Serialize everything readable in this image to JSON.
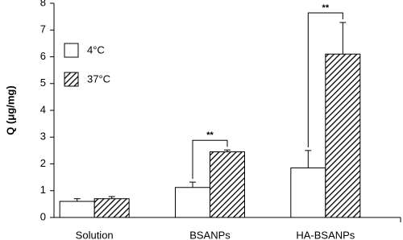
{
  "chart_data": {
    "type": "bar",
    "y_label": "Q (μg/mg)",
    "categories": [
      "Solution",
      "BSANPs",
      "HA-BSANPs"
    ],
    "series": [
      {
        "name": "4°C",
        "color": "#ffffff",
        "hatch": false,
        "values": [
          0.6,
          1.12,
          1.85
        ],
        "errors": [
          0.1,
          0.2,
          0.65
        ]
      },
      {
        "name": "37°C",
        "color": "#ffffff",
        "hatch": true,
        "values": [
          0.7,
          2.45,
          6.1
        ],
        "errors": [
          0.08,
          0.07,
          1.18
        ]
      }
    ],
    "significance": [
      null,
      "**",
      "**"
    ],
    "ylim": [
      0,
      8
    ],
    "yticks": [
      0,
      1,
      2,
      3,
      4,
      5,
      6,
      7,
      8
    ],
    "legend": "upper left",
    "grid": false
  }
}
